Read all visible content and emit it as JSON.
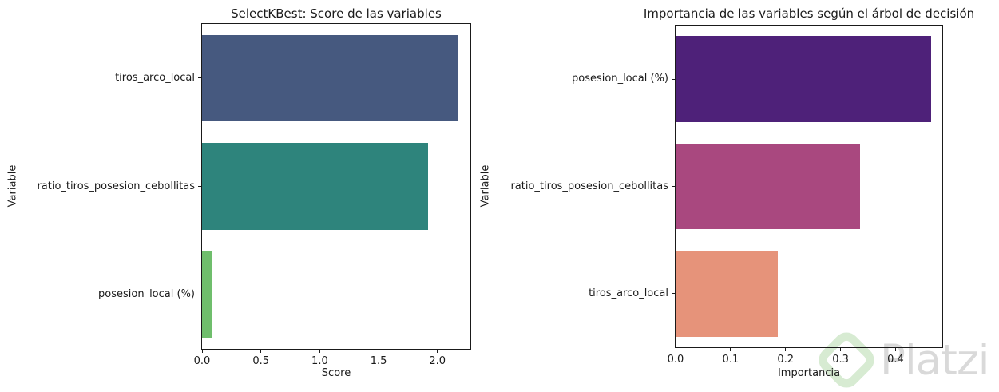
{
  "figure": {
    "background": "#ffffff",
    "text_color": "#1a1a1a"
  },
  "chart_data": [
    {
      "type": "bar",
      "orientation": "horizontal",
      "title": "SelectKBest: Score de las variables",
      "xlabel": "Score",
      "ylabel": "Variable",
      "categories": [
        "tiros_arco_local",
        "ratio_tiros_posesion_cebollitas",
        "posesion_local (%)"
      ],
      "values": [
        2.17,
        1.92,
        0.08
      ],
      "bar_colors": [
        "#46597f",
        "#2e847c",
        "#6fbe6c"
      ],
      "xlim": [
        0,
        2.28
      ],
      "xticks": [
        "0.0",
        "0.5",
        "1.0",
        "1.5",
        "2.0"
      ],
      "xtick_values": [
        0,
        0.5,
        1.0,
        1.5,
        2.0
      ],
      "grid": false,
      "legend": null
    },
    {
      "type": "bar",
      "orientation": "horizontal",
      "title": "Importancia de las variables según el árbol de decisión",
      "xlabel": "Importancia",
      "ylabel": "Variable",
      "categories": [
        "posesion_local (%)",
        "ratio_tiros_posesion_cebollitas",
        "tiros_arco_local"
      ],
      "values": [
        0.464,
        0.335,
        0.186
      ],
      "bar_colors": [
        "#4e2179",
        "#a9487f",
        "#e6937a"
      ],
      "xlim": [
        0,
        0.485
      ],
      "xticks": [
        "0.0",
        "0.1",
        "0.2",
        "0.3",
        "0.4"
      ],
      "xtick_values": [
        0,
        0.1,
        0.2,
        0.3,
        0.4
      ],
      "grid": false,
      "legend": null
    }
  ],
  "watermark": {
    "text": "Platzi",
    "logo": "platzi-diamond-logo",
    "text_color": "#d9d9d9",
    "logo_color": "#d7ebd2"
  }
}
